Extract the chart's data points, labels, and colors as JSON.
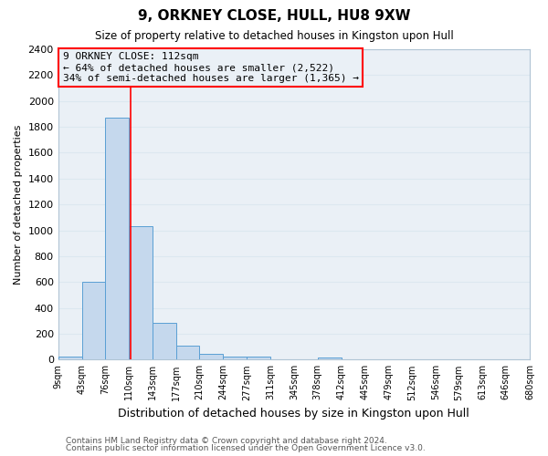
{
  "title": "9, ORKNEY CLOSE, HULL, HU8 9XW",
  "subtitle": "Size of property relative to detached houses in Kingston upon Hull",
  "xlabel": "Distribution of detached houses by size in Kingston upon Hull",
  "ylabel": "Number of detached properties",
  "bar_color": "#c5d8ed",
  "bar_edge_color": "#5a9fd4",
  "background_color": "#eaf0f6",
  "grid_color": "#dce8f0",
  "red_line_x": 112,
  "annotation_line0": "9 ORKNEY CLOSE: 112sqm",
  "annotation_line1": "← 64% of detached houses are smaller (2,522)",
  "annotation_line2": "34% of semi-detached houses are larger (1,365) →",
  "footer1": "Contains HM Land Registry data © Crown copyright and database right 2024.",
  "footer2": "Contains public sector information licensed under the Open Government Licence v3.0.",
  "bin_edges": [
    9,
    43,
    76,
    110,
    143,
    177,
    210,
    244,
    277,
    311,
    345,
    378,
    412,
    445,
    479,
    512,
    546,
    579,
    613,
    646,
    680
  ],
  "bin_heights": [
    20,
    600,
    1870,
    1030,
    285,
    110,
    45,
    25,
    20,
    0,
    0,
    15,
    0,
    0,
    0,
    0,
    0,
    0,
    0,
    0
  ],
  "ylim": [
    0,
    2400
  ],
  "yticks": [
    0,
    200,
    400,
    600,
    800,
    1000,
    1200,
    1400,
    1600,
    1800,
    2000,
    2200,
    2400
  ]
}
